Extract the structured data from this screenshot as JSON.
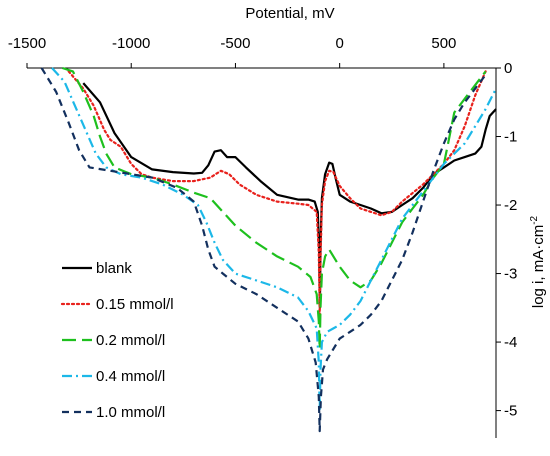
{
  "chart_data": {
    "type": "line",
    "xlabel": "Potential, mV",
    "ylabel_main": "log i, mA·cm",
    "ylabel_sup": "-2",
    "x_axis_position": "top",
    "y_axis_position": "right",
    "xlim": [
      -1500,
      750
    ],
    "ylim": [
      -5.4,
      0
    ],
    "x_ticks": [
      -1500,
      -1000,
      -500,
      0,
      500
    ],
    "x_tick_labels": [
      "-1500",
      "-1000",
      "-500",
      "0",
      "500"
    ],
    "y_ticks": [
      0,
      -1,
      -2,
      -3,
      -4,
      -5
    ],
    "y_tick_labels": [
      "0",
      "-1",
      "-2",
      "-3",
      "-4",
      "-5"
    ],
    "grid": false,
    "legend_position": "bottom-left",
    "series": [
      {
        "name": "blank",
        "color": "#000000",
        "dash": "solid",
        "points": [
          [
            -1230,
            -0.22
          ],
          [
            -1150,
            -0.5
          ],
          [
            -1080,
            -0.95
          ],
          [
            -1000,
            -1.3
          ],
          [
            -900,
            -1.48
          ],
          [
            -800,
            -1.52
          ],
          [
            -700,
            -1.54
          ],
          [
            -660,
            -1.53
          ],
          [
            -630,
            -1.42
          ],
          [
            -600,
            -1.22
          ],
          [
            -570,
            -1.2
          ],
          [
            -540,
            -1.3
          ],
          [
            -500,
            -1.3
          ],
          [
            -450,
            -1.45
          ],
          [
            -380,
            -1.65
          ],
          [
            -300,
            -1.85
          ],
          [
            -200,
            -1.92
          ],
          [
            -150,
            -1.92
          ],
          [
            -120,
            -1.95
          ],
          [
            -105,
            -2.1
          ],
          [
            -98,
            -2.7
          ],
          [
            -95,
            -3.5
          ],
          [
            -92,
            -2.6
          ],
          [
            -85,
            -1.9
          ],
          [
            -70,
            -1.55
          ],
          [
            -50,
            -1.38
          ],
          [
            -35,
            -1.4
          ],
          [
            -20,
            -1.6
          ],
          [
            0,
            -1.85
          ],
          [
            50,
            -1.95
          ],
          [
            100,
            -2.0
          ],
          [
            150,
            -2.05
          ],
          [
            200,
            -2.12
          ],
          [
            250,
            -2.1
          ],
          [
            300,
            -2.0
          ],
          [
            350,
            -1.9
          ],
          [
            400,
            -1.75
          ],
          [
            450,
            -1.55
          ],
          [
            500,
            -1.45
          ],
          [
            550,
            -1.35
          ],
          [
            600,
            -1.3
          ],
          [
            650,
            -1.25
          ],
          [
            680,
            -1.15
          ],
          [
            700,
            -0.9
          ],
          [
            720,
            -0.7
          ],
          [
            750,
            -0.6
          ]
        ]
      },
      {
        "name": "0.15 mmol/l",
        "color": "#e8211c",
        "dash": "dotted",
        "points": [
          [
            -1300,
            -0.05
          ],
          [
            -1230,
            -0.3
          ],
          [
            -1180,
            -0.55
          ],
          [
            -1130,
            -0.9
          ],
          [
            -1100,
            -1.05
          ],
          [
            -1050,
            -1.15
          ],
          [
            -1000,
            -1.4
          ],
          [
            -950,
            -1.55
          ],
          [
            -900,
            -1.6
          ],
          [
            -800,
            -1.65
          ],
          [
            -700,
            -1.65
          ],
          [
            -620,
            -1.6
          ],
          [
            -570,
            -1.5
          ],
          [
            -530,
            -1.55
          ],
          [
            -480,
            -1.7
          ],
          [
            -400,
            -1.85
          ],
          [
            -300,
            -1.95
          ],
          [
            -200,
            -1.98
          ],
          [
            -150,
            -2.0
          ],
          [
            -110,
            -2.1
          ],
          [
            -100,
            -2.7
          ],
          [
            -96,
            -3.6
          ],
          [
            -92,
            -2.8
          ],
          [
            -85,
            -2.0
          ],
          [
            -70,
            -1.65
          ],
          [
            -50,
            -1.5
          ],
          [
            -30,
            -1.52
          ],
          [
            0,
            -1.72
          ],
          [
            50,
            -1.9
          ],
          [
            100,
            -2.05
          ],
          [
            150,
            -2.1
          ],
          [
            200,
            -2.15
          ],
          [
            250,
            -2.1
          ],
          [
            300,
            -1.95
          ],
          [
            400,
            -1.7
          ],
          [
            500,
            -1.4
          ],
          [
            550,
            -1.2
          ],
          [
            600,
            -0.85
          ],
          [
            650,
            -0.4
          ],
          [
            700,
            -0.05
          ]
        ]
      },
      {
        "name": "0.2 mmol/l",
        "color": "#1ec01e",
        "dash": "longdash",
        "points": [
          [
            -1330,
            0
          ],
          [
            -1280,
            -0.05
          ],
          [
            -1230,
            -0.35
          ],
          [
            -1180,
            -0.7
          ],
          [
            -1150,
            -1.0
          ],
          [
            -1120,
            -1.25
          ],
          [
            -1080,
            -1.45
          ],
          [
            -1000,
            -1.55
          ],
          [
            -900,
            -1.6
          ],
          [
            -800,
            -1.7
          ],
          [
            -700,
            -1.82
          ],
          [
            -620,
            -1.9
          ],
          [
            -560,
            -2.1
          ],
          [
            -500,
            -2.3
          ],
          [
            -400,
            -2.55
          ],
          [
            -300,
            -2.75
          ],
          [
            -200,
            -2.9
          ],
          [
            -140,
            -3.05
          ],
          [
            -110,
            -3.3
          ],
          [
            -100,
            -3.7
          ],
          [
            -96,
            -4.1
          ],
          [
            -92,
            -3.5
          ],
          [
            -85,
            -3.0
          ],
          [
            -70,
            -2.75
          ],
          [
            -50,
            -2.65
          ],
          [
            -30,
            -2.75
          ],
          [
            0,
            -2.9
          ],
          [
            50,
            -3.1
          ],
          [
            100,
            -3.2
          ],
          [
            150,
            -3.1
          ],
          [
            200,
            -2.85
          ],
          [
            250,
            -2.55
          ],
          [
            300,
            -2.25
          ],
          [
            350,
            -2.05
          ],
          [
            400,
            -1.85
          ],
          [
            450,
            -1.6
          ],
          [
            500,
            -1.4
          ],
          [
            520,
            -1.1
          ],
          [
            550,
            -0.65
          ],
          [
            600,
            -0.45
          ],
          [
            650,
            -0.25
          ],
          [
            700,
            -0.05
          ]
        ]
      },
      {
        "name": "0.4 mmol/l",
        "color": "#1cb8e8",
        "dash": "dashdot",
        "points": [
          [
            -1380,
            0
          ],
          [
            -1320,
            -0.2
          ],
          [
            -1270,
            -0.55
          ],
          [
            -1220,
            -0.9
          ],
          [
            -1170,
            -1.25
          ],
          [
            -1120,
            -1.45
          ],
          [
            -1050,
            -1.55
          ],
          [
            -950,
            -1.6
          ],
          [
            -850,
            -1.7
          ],
          [
            -750,
            -1.85
          ],
          [
            -680,
            -2.0
          ],
          [
            -640,
            -2.25
          ],
          [
            -600,
            -2.55
          ],
          [
            -560,
            -2.8
          ],
          [
            -500,
            -3.0
          ],
          [
            -400,
            -3.1
          ],
          [
            -300,
            -3.2
          ],
          [
            -200,
            -3.35
          ],
          [
            -150,
            -3.55
          ],
          [
            -110,
            -3.8
          ],
          [
            -100,
            -4.3
          ],
          [
            -96,
            -5.0
          ],
          [
            -92,
            -4.4
          ],
          [
            -85,
            -4.0
          ],
          [
            -60,
            -3.85
          ],
          [
            -30,
            -3.8
          ],
          [
            0,
            -3.75
          ],
          [
            50,
            -3.6
          ],
          [
            100,
            -3.4
          ],
          [
            150,
            -3.1
          ],
          [
            200,
            -2.8
          ],
          [
            250,
            -2.5
          ],
          [
            300,
            -2.2
          ],
          [
            400,
            -1.8
          ],
          [
            500,
            -1.4
          ],
          [
            550,
            -1.25
          ],
          [
            600,
            -1.1
          ],
          [
            650,
            -0.85
          ],
          [
            700,
            -0.6
          ],
          [
            750,
            -0.3
          ]
        ]
      },
      {
        "name": "1.0 mmol/l",
        "color": "#13305e",
        "dash": "dashed",
        "points": [
          [
            -1430,
            0
          ],
          [
            -1360,
            -0.35
          ],
          [
            -1300,
            -0.8
          ],
          [
            -1250,
            -1.2
          ],
          [
            -1200,
            -1.45
          ],
          [
            -1100,
            -1.5
          ],
          [
            -1000,
            -1.55
          ],
          [
            -900,
            -1.6
          ],
          [
            -780,
            -1.75
          ],
          [
            -700,
            -1.95
          ],
          [
            -660,
            -2.3
          ],
          [
            -630,
            -2.65
          ],
          [
            -600,
            -2.9
          ],
          [
            -560,
            -3.0
          ],
          [
            -500,
            -3.15
          ],
          [
            -400,
            -3.3
          ],
          [
            -300,
            -3.5
          ],
          [
            -200,
            -3.7
          ],
          [
            -150,
            -3.95
          ],
          [
            -115,
            -4.3
          ],
          [
            -100,
            -4.8
          ],
          [
            -96,
            -5.3
          ],
          [
            -90,
            -4.8
          ],
          [
            -80,
            -4.4
          ],
          [
            -60,
            -4.25
          ],
          [
            -20,
            -4.05
          ],
          [
            0,
            -3.95
          ],
          [
            50,
            -3.85
          ],
          [
            100,
            -3.75
          ],
          [
            150,
            -3.6
          ],
          [
            200,
            -3.4
          ],
          [
            250,
            -3.1
          ],
          [
            300,
            -2.8
          ],
          [
            350,
            -2.4
          ],
          [
            400,
            -1.95
          ],
          [
            450,
            -1.5
          ],
          [
            500,
            -1.1
          ],
          [
            550,
            -0.75
          ],
          [
            600,
            -0.5
          ],
          [
            650,
            -0.3
          ],
          [
            700,
            -0.1
          ]
        ]
      }
    ]
  }
}
